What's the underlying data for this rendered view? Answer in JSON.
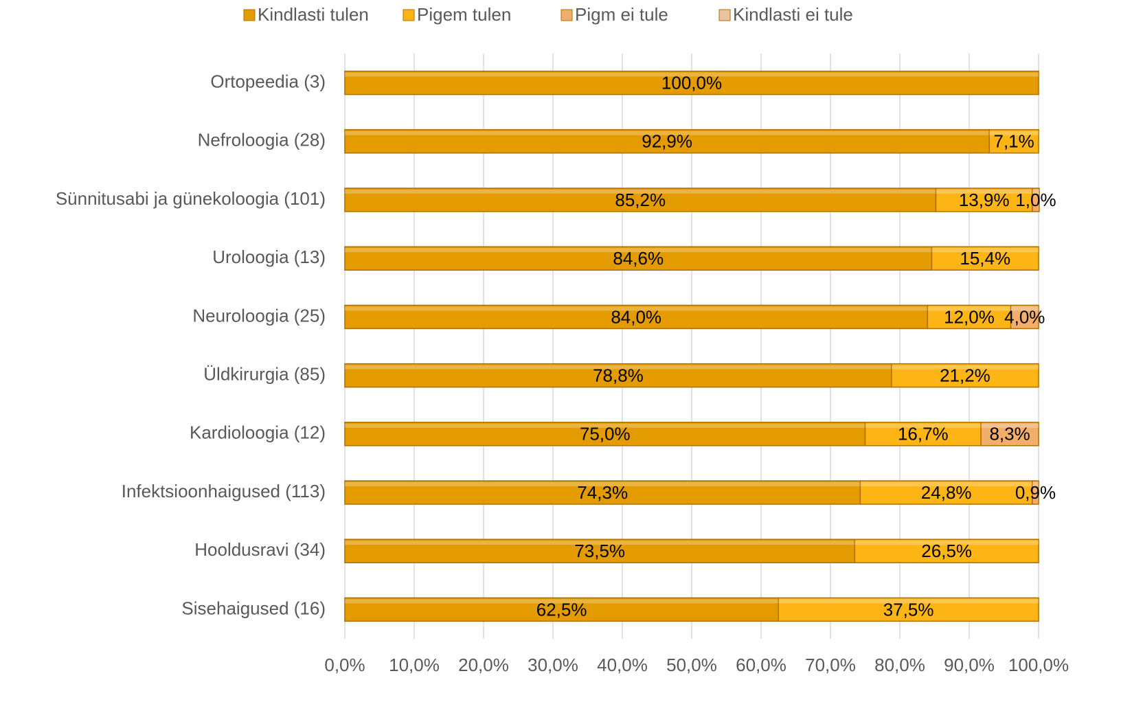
{
  "chart_data": {
    "type": "stacked-bar-horizontal",
    "categories": [
      "Ortopeedia (3)",
      "Nefroloogia (28)",
      "Sünnitusabi ja günekoloogia (101)",
      "Uroloogia (13)",
      "Neuroloogia (25)",
      "Üldkirurgia (85)",
      "Kardioloogia (12)",
      "Infektsioonhaigused (113)",
      "Hooldusravi (34)",
      "Sisehaigused (16)"
    ],
    "series": [
      {
        "name": "Kindlasti tulen",
        "color": "#E39B00",
        "values": [
          100,
          92.9,
          85.2,
          84.6,
          84.0,
          78.8,
          75.0,
          74.3,
          73.5,
          62.5
        ],
        "value_labels": [
          "100,0%",
          "92,9%",
          "85,2%",
          "84,6%",
          "84,0%",
          "78,8%",
          "75,0%",
          "74,3%",
          "73,5%",
          "62,5%"
        ]
      },
      {
        "name": "Pigem tulen",
        "color": "#FDB515",
        "values": [
          null,
          7.1,
          13.9,
          15.4,
          12.0,
          21.2,
          16.7,
          24.8,
          26.5,
          37.5
        ],
        "value_labels": [
          null,
          "7,1%",
          "13,9%",
          "15,4%",
          "12,0%",
          "21,2%",
          "16,7%",
          "24,8%",
          "26,5%",
          "37,5%"
        ]
      },
      {
        "name": "Pigm ei tule",
        "color": "#F2AE6A",
        "values": [
          null,
          null,
          1.0,
          null,
          4.0,
          null,
          8.3,
          0.9,
          null,
          null
        ],
        "value_labels": [
          null,
          null,
          "1,0%",
          null,
          "4,0%",
          null,
          "8,3%",
          "0,9%",
          null,
          null
        ]
      },
      {
        "name": "Kindlasti ei tule",
        "color": "#E9C3A4",
        "values": [
          null,
          null,
          null,
          null,
          null,
          null,
          null,
          null,
          null,
          null
        ]
      }
    ],
    "xlim": [
      0,
      100
    ],
    "xticks": [
      {
        "value": 0,
        "label": "0,0%"
      },
      {
        "value": 10,
        "label": "10,0%"
      },
      {
        "value": 20,
        "label": "20,0%"
      },
      {
        "value": 30,
        "label": "30,0%"
      },
      {
        "value": 40,
        "label": "40,0%"
      },
      {
        "value": 50,
        "label": "50,0%"
      },
      {
        "value": 60,
        "label": "60,0%"
      },
      {
        "value": 70,
        "label": "70,0%"
      },
      {
        "value": 80,
        "label": "80,0%"
      },
      {
        "value": 90,
        "label": "90,0%"
      },
      {
        "value": 100,
        "label": "100,0%"
      }
    ],
    "grid": true,
    "legend": "top"
  }
}
